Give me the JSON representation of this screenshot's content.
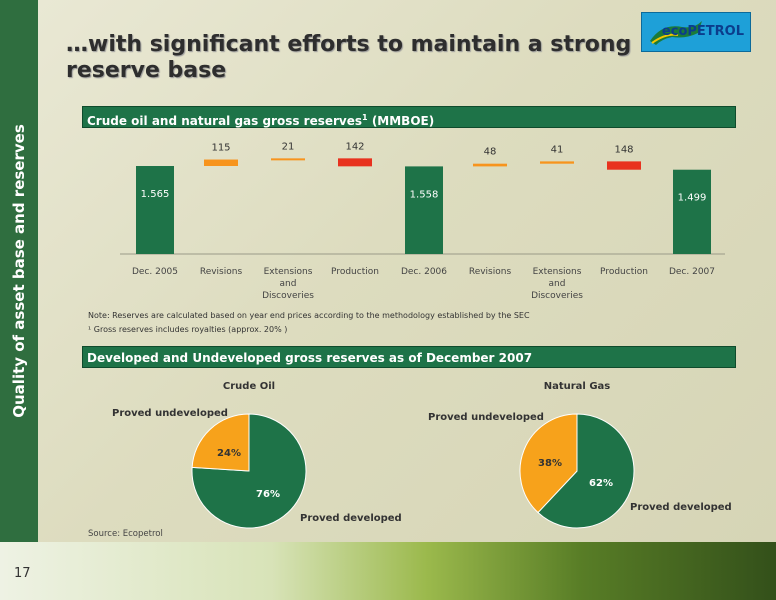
{
  "slide": {
    "title": "…with significant efforts to maintain a strong reserve base",
    "side_label": "Quality of asset base and reserves",
    "page_number": "17",
    "logo_text": "ecoPETROL",
    "note": "Note: Reserves are calculated based on year end prices according to the methodology established by the SEC",
    "footnote": "¹ Gross reserves includes royalties (approx. 20% )",
    "source": "Source: Ecopetrol"
  },
  "section1_title": "Crude oil and natural gas gross reserves",
  "section1_sup": "1",
  "section1_unit": "(MMBOE)",
  "section2_title": "Developed and Undeveloped gross reserves as of December 2007",
  "chart_data": [
    {
      "type": "bar",
      "subtype": "waterfall",
      "title": "Crude oil and natural gas gross reserves1 (MMBOE)",
      "categories": [
        "Dec. 2005",
        "Revisions",
        "Extensions and Discoveries",
        "Production",
        "Dec. 2006",
        "Revisions",
        "Extensions and Discoveries",
        "Production",
        "Dec. 2007"
      ],
      "category_lines": [
        [
          "Dec. 2005"
        ],
        [
          "Revisions"
        ],
        [
          "Extensions",
          "and",
          "Discoveries"
        ],
        [
          "Production"
        ],
        [
          "Dec. 2006"
        ],
        [
          "Revisions"
        ],
        [
          "Extensions",
          "and",
          "Discoveries"
        ],
        [
          "Production"
        ],
        [
          "Dec. 2007"
        ]
      ],
      "values": [
        1565,
        115,
        21,
        -142,
        1558,
        48,
        41,
        -148,
        1499
      ],
      "labels": [
        "1.565",
        "115",
        "21",
        "142",
        "1.558",
        "48",
        "41",
        "148",
        "1.499"
      ],
      "kinds": [
        "total",
        "increase",
        "increase",
        "decrease",
        "total",
        "increase",
        "increase",
        "decrease",
        "total"
      ],
      "colors": {
        "total": "#1e7348",
        "increase": "#f7941d",
        "decrease": "#e8321e"
      }
    },
    {
      "type": "pie",
      "title": "Crude Oil",
      "slices": [
        {
          "name": "Proved developed",
          "value": 76,
          "label": "76%",
          "color": "#1e7348"
        },
        {
          "name": "Proved undeveloped",
          "value": 24,
          "label": "24%",
          "color": "#f7a21b"
        }
      ]
    },
    {
      "type": "pie",
      "title": "Natural Gas",
      "slices": [
        {
          "name": "Proved developed",
          "value": 62,
          "label": "62%",
          "color": "#1e7348"
        },
        {
          "name": "Proved  undeveloped",
          "value": 38,
          "label": "38%",
          "color": "#f7a21b"
        }
      ]
    }
  ]
}
